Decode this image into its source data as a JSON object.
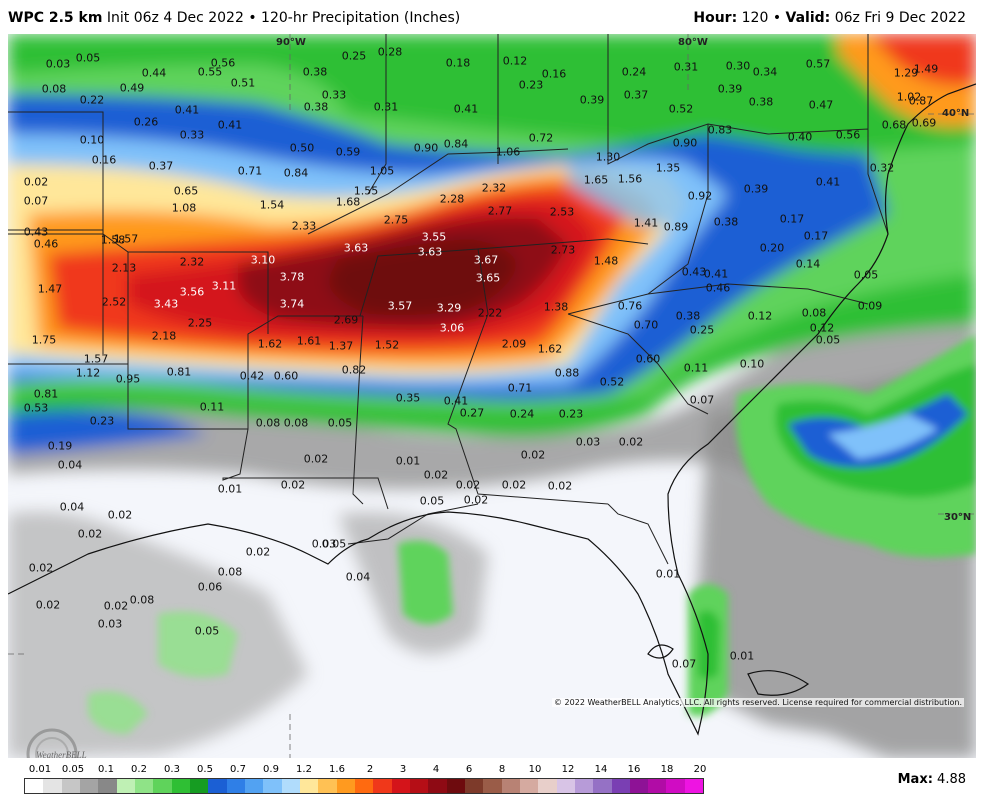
{
  "header": {
    "product": "WPC 2.5 km",
    "init": "Init 06z 4 Dec 2022",
    "separator": "•",
    "field": "120-hr Precipitation (Inches)",
    "hour_label": "Hour:",
    "hour_value": "120",
    "valid_label": "Valid:",
    "valid_value": "06z Fri 9 Dec 2022"
  },
  "map": {
    "lat_lon_labels": [
      "90°W",
      "80°W",
      "40°N",
      "30°N"
    ],
    "copyright": "© 2022 WeatherBELL Analytics, LLC. All rights reserved. License required for commercial distribution.",
    "logo_text": "WeatherBELL",
    "point_values": [
      "0.03",
      "0.05",
      "0.44",
      "0.55",
      "0.56",
      "0.25",
      "0.28",
      "0.18",
      "0.12",
      "0.16",
      "0.24",
      "0.31",
      "0.30",
      "0.34",
      "0.57",
      "1.29",
      "1.49",
      "0.08",
      "0.49",
      "0.22",
      "0.51",
      "0.38",
      "0.33",
      "0.23",
      "0.39",
      "0.37",
      "0.39",
      "0.38",
      "0.47",
      "1.02",
      "0.87",
      "0.26",
      "0.41",
      "0.41",
      "0.38",
      "0.31",
      "0.41",
      "0.52",
      "0.68",
      "0.69",
      "0.10",
      "0.33",
      "0.72",
      "0.90",
      "0.83",
      "0.40",
      "0.56",
      "0.16",
      "0.50",
      "0.59",
      "0.90",
      "0.84",
      "1.06",
      "1.30",
      "0.32",
      "0.37",
      "0.71",
      "0.84",
      "1.05",
      "1.35",
      "1.56",
      "0.02",
      "0.65",
      "1.55",
      "2.32",
      "1.65",
      "0.39",
      "0.41",
      "0.07",
      "1.08",
      "1.54",
      "1.68",
      "2.28",
      "2.77",
      "2.53",
      "0.92",
      "0.43",
      "2.75",
      "2.33",
      "1.41",
      "0.89",
      "0.38",
      "0.17",
      "0.17",
      "0.46",
      "1.58",
      "1.57",
      "3.55",
      "3.63",
      "3.63",
      "2.73",
      "0.20",
      "3.67",
      "1.48",
      "2.13",
      "2.32",
      "3.10",
      "0.14",
      "0.43",
      "0.41",
      "0.05",
      "3.78",
      "3.65",
      "0.46",
      "1.47",
      "3.56",
      "3.11",
      "2.52",
      "3.43",
      "3.74",
      "1.38",
      "0.09",
      "3.57",
      "3.29",
      "2.22",
      "0.76",
      "0.38",
      "0.12",
      "0.08",
      "2.25",
      "2.69",
      "3.06",
      "0.70",
      "0.25",
      "0.12",
      "1.75",
      "2.18",
      "1.62",
      "1.61",
      "1.37",
      "1.52",
      "2.09",
      "1.62",
      "0.05",
      "1.57",
      "0.60",
      "0.10",
      "1.12",
      "0.95",
      "0.81",
      "0.42",
      "0.60",
      "0.82",
      "0.88",
      "0.11",
      "0.52",
      "0.81",
      "0.71",
      "0.35",
      "0.41",
      "0.07",
      "0.53",
      "0.11",
      "0.27",
      "0.24",
      "0.23",
      "0.23",
      "0.08",
      "0.08",
      "0.05",
      "0.03",
      "0.02",
      "0.19",
      "0.02",
      "0.01",
      "0.02",
      "0.04",
      "0.02",
      "0.02",
      "0.01",
      "0.02",
      "0.02",
      "0.02",
      "0.04",
      "0.02",
      "0.02",
      "0.03",
      "0.05",
      "0.05",
      "0.02",
      "0.02",
      "0.06",
      "0.01",
      "0.02",
      "0.04",
      "0.02",
      "0.02",
      "0.08",
      "0.08",
      "0.03",
      "0.05",
      "0.07",
      "0.01"
    ]
  },
  "legend": {
    "ticks": [
      "0.01",
      "0.05",
      "0.1",
      "0.2",
      "0.3",
      "0.5",
      "0.7",
      "0.9",
      "1.2",
      "1.6",
      "2",
      "3",
      "4",
      "6",
      "8",
      "10",
      "12",
      "14",
      "16",
      "18",
      "20"
    ],
    "colors": [
      "#ffffff",
      "#e4e4e4",
      "#c6c6c6",
      "#a4a4a4",
      "#888888",
      "#bff0b4",
      "#8fe387",
      "#5fd35b",
      "#2fbf34",
      "#169c22",
      "#1b5fd4",
      "#2f7fe7",
      "#52a2f2",
      "#7fc1fa",
      "#b0dcfc",
      "#ffe79a",
      "#ffc154",
      "#ff9a1f",
      "#ff6a10",
      "#f0381a",
      "#d4141a",
      "#b50e16",
      "#8e0a14",
      "#6e0b0e",
      "#7d3a2a",
      "#9a5c48",
      "#b88274",
      "#d5aaa0",
      "#e8cfca",
      "#d8c4e6",
      "#b79bd8",
      "#9571c5",
      "#7a3fb3",
      "#8e1296",
      "#b10ca6",
      "#d00cc3",
      "#ee14e2"
    ],
    "max_label": "Max:",
    "max_value": "4.88"
  }
}
